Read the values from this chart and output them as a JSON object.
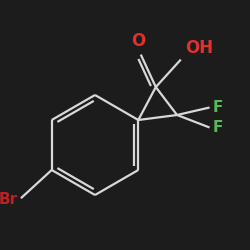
{
  "background_color": "#1c1c1c",
  "bond_color": "#d8d8d8",
  "O_color": "#e03030",
  "F_color": "#55bb55",
  "Br_color": "#bb2222",
  "bond_width": 1.6,
  "font_size_O": 12,
  "font_size_F": 11,
  "font_size_Br": 11,
  "font_size_OH": 12,
  "figsize": [
    2.5,
    2.5
  ],
  "dpi": 100,
  "xlim": [
    0.0,
    1.0
  ],
  "ylim": [
    0.0,
    1.0
  ]
}
